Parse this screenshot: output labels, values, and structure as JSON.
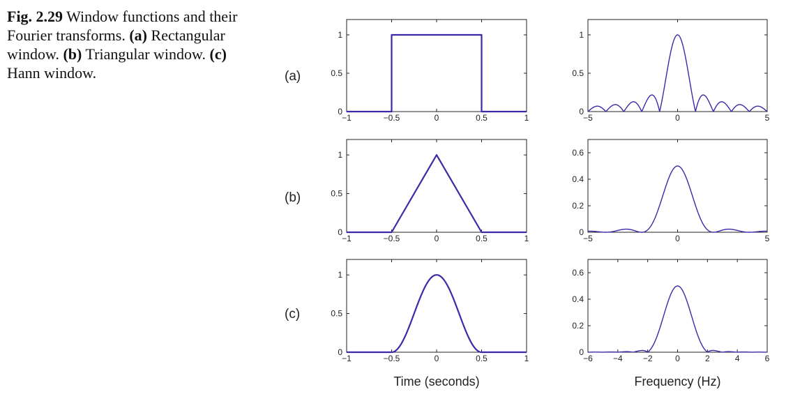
{
  "caption": {
    "fig_label": "Fig. 2.29",
    "text_1": "Window functions and their Fourier transforms.",
    "label_a": "(a)",
    "text_a": "Rectangular window.",
    "label_b": "(b)",
    "text_b": "Triangular window.",
    "label_c": "(c)",
    "text_c": "Hann window."
  },
  "row_labels": [
    "(a)",
    "(b)",
    "(c)"
  ],
  "colors": {
    "curve": "#3a2aa8",
    "axis": "#222222"
  },
  "chart_data": [
    {
      "type": "line",
      "panel": "a-time",
      "title": "",
      "xlabel": "",
      "ylabel": "",
      "xlim": [
        -1,
        1
      ],
      "ylim": [
        0,
        1.2
      ],
      "xticks": [
        -1,
        -0.5,
        0,
        0.5,
        1
      ],
      "yticks": [
        0,
        0.5,
        1
      ],
      "series": [
        {
          "function": "rectangular",
          "x": [
            -1,
            -0.5,
            -0.5,
            0.5,
            0.5,
            1
          ],
          "y": [
            0,
            0,
            1,
            1,
            0,
            0
          ]
        }
      ]
    },
    {
      "type": "line",
      "panel": "a-freq",
      "title": "",
      "xlabel": "",
      "ylabel": "",
      "xlim": [
        -5,
        5
      ],
      "ylim": [
        0,
        1.2
      ],
      "xticks": [
        -5,
        0,
        5
      ],
      "yticks": [
        0,
        0.5,
        1
      ],
      "series": [
        {
          "function": "|sinc(f)|",
          "x_range": [
            -5,
            5
          ],
          "peak": 1
        }
      ]
    },
    {
      "type": "line",
      "panel": "b-time",
      "title": "",
      "xlabel": "",
      "ylabel": "",
      "xlim": [
        -1,
        1
      ],
      "ylim": [
        0,
        1.2
      ],
      "xticks": [
        -1,
        -0.5,
        0,
        0.5,
        1
      ],
      "yticks": [
        0,
        0.5,
        1
      ],
      "series": [
        {
          "function": "triangular",
          "x": [
            -1,
            -0.5,
            0,
            0.5,
            1
          ],
          "y": [
            0,
            0,
            1,
            0,
            0
          ]
        }
      ]
    },
    {
      "type": "line",
      "panel": "b-freq",
      "title": "",
      "xlabel": "",
      "ylabel": "",
      "xlim": [
        -5,
        5
      ],
      "ylim": [
        0,
        0.7
      ],
      "xticks": [
        -5,
        0,
        5
      ],
      "yticks": [
        0,
        0.2,
        0.4,
        0.6
      ],
      "series": [
        {
          "function": "0.5*sinc^2(f/2)",
          "x_range": [
            -5,
            5
          ],
          "peak": 0.5
        }
      ]
    },
    {
      "type": "line",
      "panel": "c-time",
      "title": "",
      "xlabel": "Time (seconds)",
      "ylabel": "",
      "xlim": [
        -1,
        1
      ],
      "ylim": [
        0,
        1.2
      ],
      "xticks": [
        -1,
        -0.5,
        0,
        0.5,
        1
      ],
      "yticks": [
        0,
        0.5,
        1
      ],
      "series": [
        {
          "function": "hann",
          "support": [
            -0.5,
            0.5
          ],
          "peak": 1
        }
      ]
    },
    {
      "type": "line",
      "panel": "c-freq",
      "title": "",
      "xlabel": "Frequency (Hz)",
      "ylabel": "",
      "xlim": [
        -6,
        6
      ],
      "ylim": [
        0,
        0.7
      ],
      "xticks": [
        -6,
        -4,
        -2,
        0,
        2,
        4,
        6
      ],
      "yticks": [
        0,
        0.2,
        0.4,
        0.6
      ],
      "series": [
        {
          "function": "hann-transform",
          "x_range": [
            -6,
            6
          ],
          "peak": 0.5
        }
      ]
    }
  ]
}
